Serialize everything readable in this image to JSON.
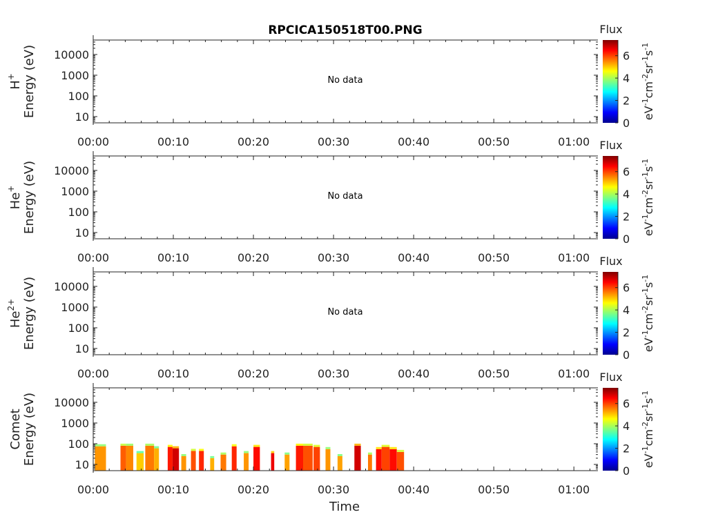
{
  "title": "RPCICA150518T00.PNG",
  "xlabel": "Time",
  "colorbar": {
    "title": "Flux",
    "label_parts": [
      "eV",
      "-1",
      "cm",
      "-2",
      "sr",
      "-1",
      "s",
      "-1"
    ],
    "ticks": [
      "0",
      "2",
      "4",
      "6"
    ],
    "range": [
      0,
      7.4
    ],
    "colors": [
      "#00008f",
      "#0000ff",
      "#0080ff",
      "#00ffff",
      "#80ff80",
      "#ffff00",
      "#ff8000",
      "#ff0000",
      "#800000"
    ]
  },
  "chart_data": [
    {
      "type": "heatmap",
      "panel": "H+",
      "ylabel_species": "H",
      "ylabel_charge": "+",
      "ylabel_units": "Energy (eV)",
      "yticks": [
        "10",
        "100",
        "1000",
        "10000"
      ],
      "ylim": [
        5,
        50000
      ],
      "yscale": "log",
      "x_ticks": [
        "00:00",
        "00:10",
        "00:20",
        "00:30",
        "00:40",
        "00:50",
        "01:00"
      ],
      "xlim_minutes": [
        0,
        63
      ],
      "annotation": "No data",
      "segments": []
    },
    {
      "type": "heatmap",
      "panel": "He+",
      "ylabel_species": "He",
      "ylabel_charge": "+",
      "ylabel_units": "Energy (eV)",
      "yticks": [
        "10",
        "100",
        "1000",
        "10000"
      ],
      "ylim": [
        5,
        50000
      ],
      "yscale": "log",
      "x_ticks": [
        "00:00",
        "00:10",
        "00:20",
        "00:30",
        "00:40",
        "00:50",
        "01:00"
      ],
      "xlim_minutes": [
        0,
        63
      ],
      "annotation": "No data",
      "segments": []
    },
    {
      "type": "heatmap",
      "panel": "He2+",
      "ylabel_species": "He",
      "ylabel_charge": "2+",
      "ylabel_units": "Energy (eV)",
      "yticks": [
        "10",
        "100",
        "1000",
        "10000"
      ],
      "ylim": [
        5,
        50000
      ],
      "yscale": "log",
      "x_ticks": [
        "00:00",
        "00:10",
        "00:20",
        "00:30",
        "00:40",
        "00:50",
        "01:00"
      ],
      "xlim_minutes": [
        0,
        63
      ],
      "annotation": "No data",
      "segments": []
    },
    {
      "type": "heatmap",
      "panel": "Comet",
      "ylabel_species": "Comet",
      "ylabel_charge": "",
      "ylabel_units": "Energy (eV)",
      "yticks": [
        "10",
        "100",
        "1000",
        "10000"
      ],
      "ylim": [
        5,
        50000
      ],
      "yscale": "log",
      "x_ticks": [
        "00:00",
        "00:10",
        "00:20",
        "00:30",
        "00:40",
        "00:50",
        "01:00"
      ],
      "xlim_minutes": [
        0,
        63
      ],
      "annotation": "",
      "segments": [
        {
          "t0": 0.2,
          "t1": 1.6,
          "emax": 75,
          "flux": 5.4
        },
        {
          "t0": 3.4,
          "t1": 4.1,
          "emax": 80,
          "flux": 5.8
        },
        {
          "t0": 4.1,
          "t1": 5.0,
          "emax": 80,
          "flux": 5.5
        },
        {
          "t0": 5.4,
          "t1": 6.3,
          "emax": 35,
          "flux": 5.0
        },
        {
          "t0": 6.5,
          "t1": 7.6,
          "emax": 80,
          "flux": 5.6
        },
        {
          "t0": 7.6,
          "t1": 8.2,
          "emax": 60,
          "flux": 5.2
        },
        {
          "t0": 9.3,
          "t1": 9.9,
          "emax": 70,
          "flux": 6.3
        },
        {
          "t0": 9.9,
          "t1": 10.7,
          "emax": 60,
          "flux": 6.8
        },
        {
          "t0": 11.0,
          "t1": 11.6,
          "emax": 25,
          "flux": 5.4
        },
        {
          "t0": 12.2,
          "t1": 12.8,
          "emax": 45,
          "flux": 5.9
        },
        {
          "t0": 13.2,
          "t1": 13.8,
          "emax": 45,
          "flux": 6.2
        },
        {
          "t0": 14.6,
          "t1": 15.1,
          "emax": 20,
          "flux": 5.2
        },
        {
          "t0": 15.9,
          "t1": 16.6,
          "emax": 30,
          "flux": 5.6
        },
        {
          "t0": 17.3,
          "t1": 17.9,
          "emax": 75,
          "flux": 6.2
        },
        {
          "t0": 18.8,
          "t1": 19.4,
          "emax": 35,
          "flux": 5.4
        },
        {
          "t0": 20.0,
          "t1": 20.8,
          "emax": 70,
          "flux": 6.4
        },
        {
          "t0": 22.2,
          "t1": 22.6,
          "emax": 35,
          "flux": 6.6
        },
        {
          "t0": 23.9,
          "t1": 24.5,
          "emax": 30,
          "flux": 5.3
        },
        {
          "t0": 25.3,
          "t1": 26.2,
          "emax": 80,
          "flux": 6.3
        },
        {
          "t0": 26.2,
          "t1": 27.4,
          "emax": 80,
          "flux": 5.9
        },
        {
          "t0": 27.5,
          "t1": 28.3,
          "emax": 70,
          "flux": 6.0
        },
        {
          "t0": 29.0,
          "t1": 29.6,
          "emax": 55,
          "flux": 5.4
        },
        {
          "t0": 30.5,
          "t1": 31.1,
          "emax": 25,
          "flux": 5.3
        },
        {
          "t0": 32.6,
          "t1": 33.4,
          "emax": 80,
          "flux": 6.8
        },
        {
          "t0": 34.3,
          "t1": 34.8,
          "emax": 30,
          "flux": 5.6
        },
        {
          "t0": 35.3,
          "t1": 36.0,
          "emax": 55,
          "flux": 6.4
        },
        {
          "t0": 36.0,
          "t1": 37.0,
          "emax": 70,
          "flux": 6.0
        },
        {
          "t0": 37.0,
          "t1": 37.9,
          "emax": 55,
          "flux": 6.4
        },
        {
          "t0": 37.9,
          "t1": 38.8,
          "emax": 40,
          "flux": 5.9
        }
      ]
    }
  ]
}
